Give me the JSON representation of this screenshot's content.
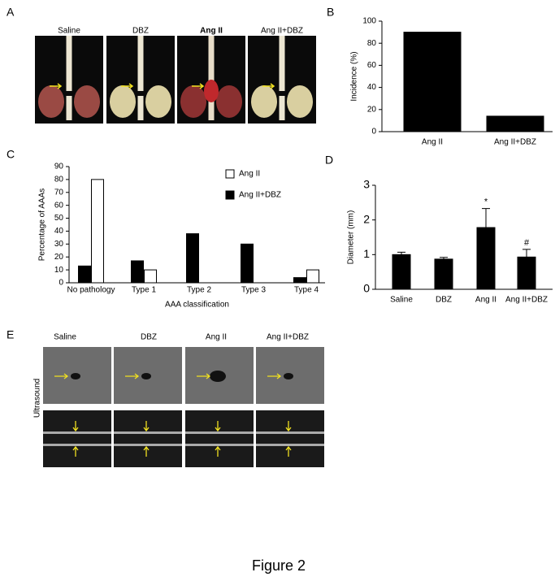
{
  "figure_title": "Figure 2",
  "panel_a": {
    "label": "A",
    "columns": [
      "Saline",
      "DBZ",
      "Ang II",
      "Ang II+DBZ"
    ]
  },
  "panel_e": {
    "label": "E",
    "columns": [
      "Saline",
      "DBZ",
      "Ang II",
      "Ang II+DBZ"
    ],
    "row_label": "Ultrasound"
  },
  "chart_data": [
    {
      "type": "bar",
      "panel": "B",
      "ylabel": "Incidence (%)",
      "categories": [
        "Ang II",
        "Ang II+DBZ"
      ],
      "series": [
        {
          "name": null,
          "color": "#000000",
          "values": [
            90,
            14
          ]
        }
      ],
      "ylim": [
        0,
        100
      ],
      "yticks": [
        0,
        20,
        40,
        60,
        80,
        100
      ]
    },
    {
      "type": "bar",
      "panel": "C",
      "ylabel": "Percentage of AAAs",
      "xlabel": "AAA classification",
      "categories": [
        "No pathology",
        "Type 1",
        "Type 2",
        "Type 3",
        "Type 4"
      ],
      "series": [
        {
          "name": "Ang II",
          "color": "#ffffff",
          "values": [
            80,
            10,
            0,
            0,
            10
          ]
        },
        {
          "name": "Ang II+DBZ",
          "color": "#000000",
          "values": [
            13,
            17,
            38,
            30,
            4
          ]
        }
      ],
      "ylim": [
        0,
        90
      ],
      "yticks": [
        0,
        10,
        20,
        30,
        40,
        50,
        60,
        70,
        80,
        90
      ],
      "legend": "upper right"
    },
    {
      "type": "bar",
      "panel": "D",
      "ylabel": "Diameter (mm)",
      "categories": [
        "Saline",
        "DBZ",
        "Ang II",
        "Ang II+DBZ"
      ],
      "series": [
        {
          "name": null,
          "color": "#000000",
          "values": [
            1.0,
            0.87,
            1.78,
            0.93
          ],
          "errors": [
            0.07,
            0.05,
            0.55,
            0.22
          ]
        }
      ],
      "annotations": [
        null,
        null,
        "*",
        "#"
      ],
      "ylim": [
        0,
        3
      ],
      "yticks": [
        0,
        1,
        2,
        3
      ]
    }
  ]
}
